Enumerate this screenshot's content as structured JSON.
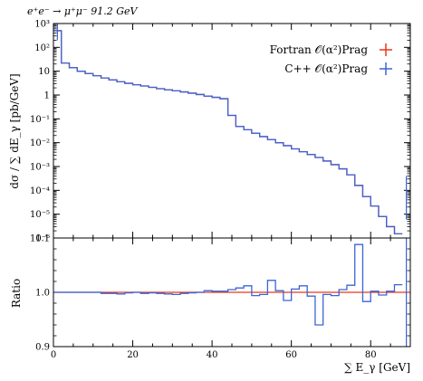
{
  "chart_data": {
    "type": "histogram",
    "title": "e⁺e⁻ → μ⁺μ⁻ 91.2 GeV",
    "ylabel": "dσ / ∑ dE_γ [pb/GeV]",
    "ratio_ylabel": "Ratio",
    "xlabel": "∑ E_γ [GeV]",
    "xlim": [
      0,
      90
    ],
    "ylim": [
      1e-06,
      1000
    ],
    "yscale": "log",
    "ratio_ylim": [
      0.9,
      1.1
    ],
    "x_ticks": [
      "0",
      "20",
      "40",
      "60",
      "80"
    ],
    "y_ticks": [
      "10³",
      "10²",
      "10",
      "1",
      "10⁻¹",
      "10⁻²",
      "10⁻³",
      "10⁻⁴",
      "10⁻⁵",
      "10⁻⁶"
    ],
    "ratio_ticks": [
      "0.9",
      "1.0",
      "1.1"
    ],
    "legend_position": "top-right",
    "colors": {
      "fortran": "#e8391b",
      "cpp": "#3a64d8"
    },
    "bin_width": 2,
    "series": [
      {
        "name": "Fortran 𝒪(α²)Prag",
        "values": [
          500,
          22,
          14,
          10,
          8,
          6.5,
          5.2,
          4.3,
          3.6,
          3.1,
          2.7,
          2.4,
          2.1,
          1.85,
          1.65,
          1.5,
          1.35,
          1.2,
          1.05,
          0.9,
          0.8,
          0.7,
          0.14,
          0.048,
          0.035,
          0.025,
          0.018,
          0.0135,
          0.01,
          0.0075,
          0.0055,
          0.0042,
          0.0032,
          0.0024,
          0.0017,
          0.0012,
          0.0008,
          0.00045,
          0.00016,
          5.5e-05,
          2.2e-05,
          8e-06,
          3e-06,
          1.5e-06
        ]
      },
      {
        "name": "C++ 𝒪(α²)Prag",
        "values": [
          500,
          22,
          14,
          10,
          8,
          6.5,
          5.2,
          4.3,
          3.6,
          3.1,
          2.7,
          2.4,
          2.1,
          1.85,
          1.65,
          1.5,
          1.35,
          1.2,
          1.05,
          0.9,
          0.8,
          0.7,
          0.14,
          0.048,
          0.035,
          0.025,
          0.018,
          0.0135,
          0.01,
          0.0075,
          0.0055,
          0.0042,
          0.0032,
          0.0024,
          0.0017,
          0.0012,
          0.0008,
          0.00045,
          0.00016,
          5.5e-05,
          2.2e-05,
          8e-06,
          3e-06,
          1.5e-06
        ]
      }
    ],
    "ratio": [
      1.0,
      1.0,
      1.0,
      1.0,
      1.0,
      1.0,
      0.998,
      0.998,
      0.997,
      0.999,
      1.0,
      0.998,
      0.999,
      0.998,
      0.997,
      0.996,
      0.998,
      0.999,
      1.0,
      1.003,
      1.002,
      1.002,
      1.005,
      1.008,
      1.012,
      0.994,
      0.996,
      1.022,
      1.003,
      0.985,
      1.006,
      1.012,
      0.993,
      0.94,
      0.996,
      0.994,
      1.005,
      1.013,
      1.088,
      0.983,
      1.002,
      0.995,
      1.002,
      1.014
    ]
  }
}
